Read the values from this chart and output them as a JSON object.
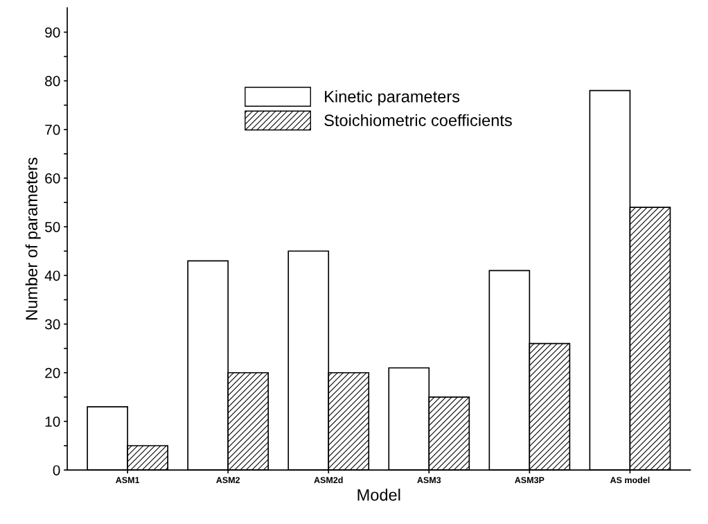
{
  "chart_data": {
    "type": "bar",
    "xlabel": "Model",
    "ylabel": "Number of parameters",
    "categories": [
      "ASM1",
      "ASM2",
      "ASM2d",
      "ASM3",
      "ASM3P",
      "AS model"
    ],
    "series": [
      {
        "name": "Kinetic parameters",
        "color": "#ffffff",
        "values": [
          13,
          43,
          45,
          21,
          41,
          78
        ]
      },
      {
        "name": "Stoichiometric coefficients",
        "color": "#000000",
        "values": [
          5,
          20,
          20,
          15,
          26,
          54
        ]
      }
    ],
    "ylim": [
      0,
      95
    ],
    "yticks": [
      0,
      {
        "value": 5,
        "label": null
      },
      10,
      {
        "value": 15,
        "label": null
      },
      20,
      {
        "value": 25,
        "label": null
      },
      30,
      {
        "value": 35,
        "label": null
      },
      40,
      {
        "value": 45,
        "label": null
      },
      50,
      {
        "value": 55,
        "label": null
      },
      60,
      {
        "value": 65,
        "label": null
      },
      70,
      {
        "value": 75,
        "label": null
      },
      80,
      {
        "value": 85,
        "label": null
      },
      90
    ],
    "grid": false,
    "legend": "top"
  }
}
